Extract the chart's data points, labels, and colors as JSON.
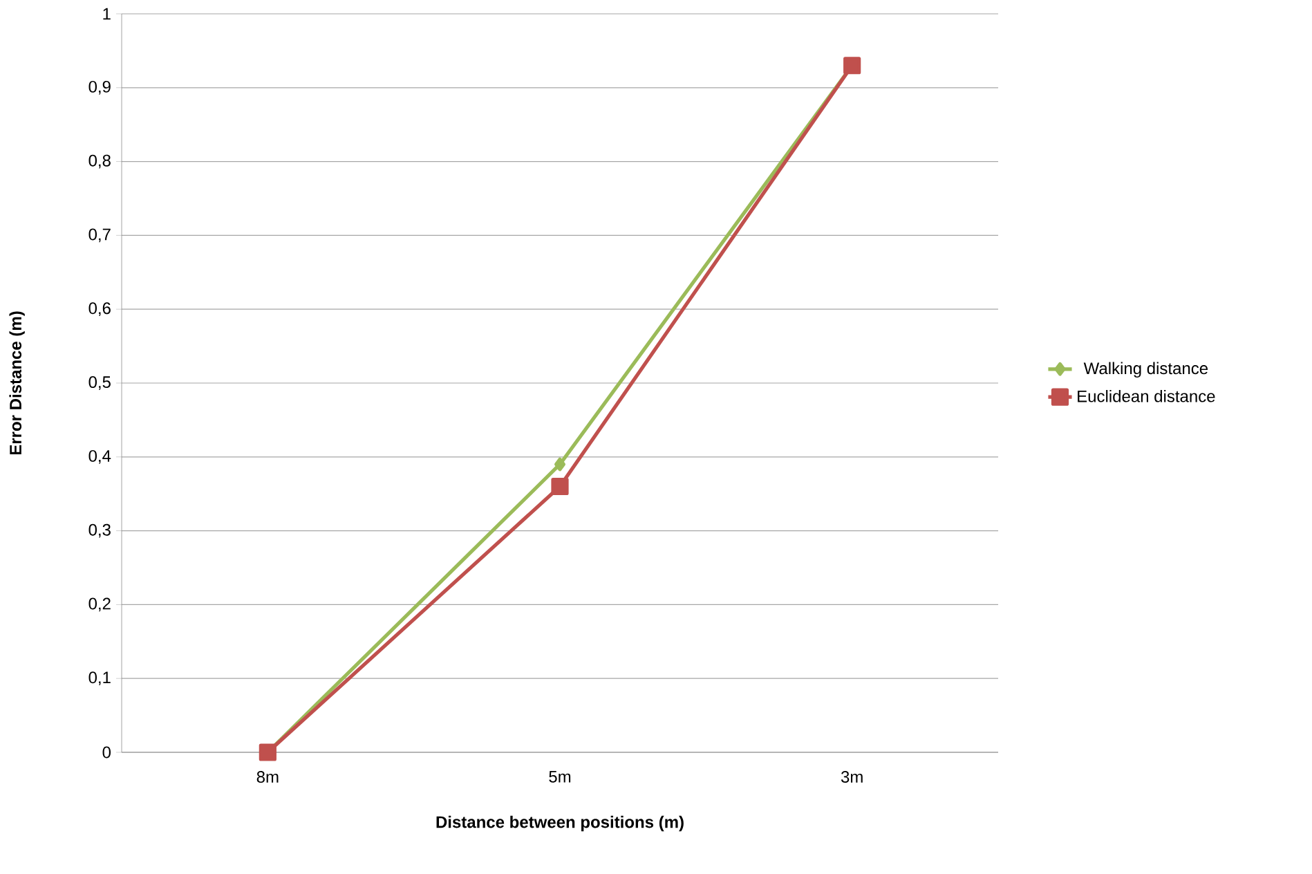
{
  "chart_data": {
    "type": "line",
    "xlabel": "Distance between positions (m)",
    "ylabel": "Error Distance (m)",
    "categories": [
      "8m",
      "5m",
      "3m"
    ],
    "series": [
      {
        "name": "Walking distance",
        "color": "#9bbb59",
        "marker": "diamond",
        "values": [
          0,
          0.39,
          0.93
        ]
      },
      {
        "name": "Euclidean distance",
        "color": "#c0504d",
        "marker": "square",
        "values": [
          0,
          0.36,
          0.93
        ]
      }
    ],
    "ylim": [
      0,
      1
    ],
    "yticks": [
      0,
      {
        "value": 0.1,
        "label": "0,1"
      },
      {
        "value": 0.2,
        "label": "0,2"
      },
      {
        "value": 0.3,
        "label": "0,3"
      },
      {
        "value": 0.4,
        "label": "0,4"
      },
      {
        "value": 0.5,
        "label": "0,5"
      },
      {
        "value": 0.6,
        "label": "0,6"
      },
      {
        "value": 0.7,
        "label": "0,7"
      },
      {
        "value": 0.8,
        "label": "0,8"
      },
      {
        "value": 0.9,
        "label": "0,9"
      },
      1
    ],
    "grid": "y",
    "legend": "right"
  }
}
